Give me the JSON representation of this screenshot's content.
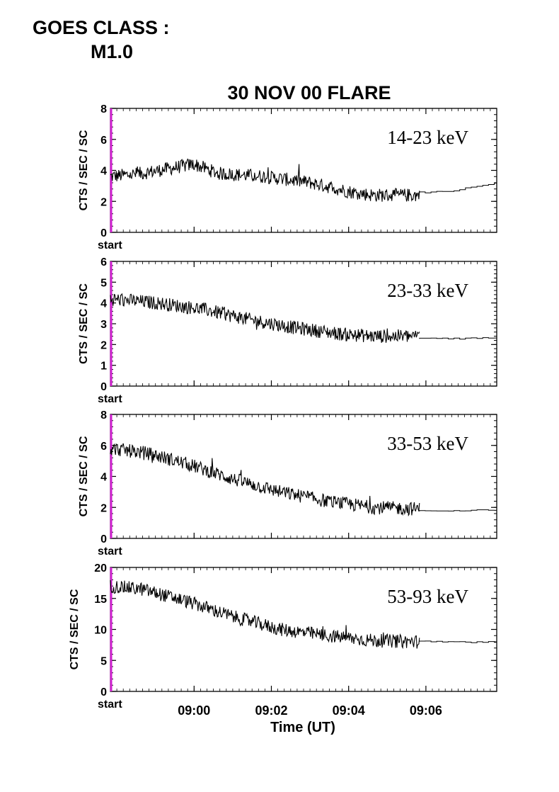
{
  "header": {
    "goes_line1": "GOES CLASS :",
    "goes_line2": "M1.0"
  },
  "chart_data": {
    "type": "line",
    "title": "30 NOV 00 FLARE",
    "xlabel": "Time (UT)",
    "x_axis": {
      "range": [
        "08:57:50",
        "09:07:50"
      ],
      "start_label": "start",
      "tick_labels": [
        "09:00",
        "09:02",
        "09:04",
        "09:06"
      ],
      "tick_times": [
        "09:00",
        "09:02",
        "09:04",
        "09:06"
      ],
      "data_end": "09:05:50"
    },
    "panels": [
      {
        "band": "14-23 keV",
        "ylabel": "CTS / SEC / SC",
        "ylim": [
          0,
          8
        ],
        "yticks": [
          0,
          2,
          4,
          6,
          8
        ],
        "series": [
          {
            "style": "noisy",
            "x": [
              0,
              0.1,
              0.27,
              0.35,
              0.5,
              0.65,
              0.78,
              0.85,
              1.0
            ],
            "y": [
              3.6,
              3.8,
              4.4,
              3.8,
              3.6,
              3.2,
              2.6,
              2.4,
              2.4
            ]
          },
          {
            "style": "step",
            "x": [
              1.0,
              1.1,
              1.3,
              1.45,
              1.67
            ],
            "y": [
              2.6,
              2.6,
              3.3,
              3.0,
              2.8
            ]
          }
        ]
      },
      {
        "band": "23-33 keV",
        "ylabel": "CTS / SEC / SC",
        "ylim": [
          0,
          6
        ],
        "yticks": [
          0,
          1,
          2,
          3,
          4,
          5,
          6
        ],
        "series": [
          {
            "style": "noisy",
            "x": [
              0,
              0.15,
              0.3,
              0.45,
              0.6,
              0.75,
              0.85,
              1.0
            ],
            "y": [
              4.2,
              4.0,
              3.7,
              3.2,
              2.8,
              2.5,
              2.4,
              2.4
            ]
          },
          {
            "style": "step",
            "x": [
              1.0,
              1.2,
              1.4,
              1.55,
              1.67
            ],
            "y": [
              2.3,
              2.3,
              2.4,
              2.4,
              2.2
            ]
          }
        ]
      },
      {
        "band": "33-53 keV",
        "ylabel": "CTS / SEC / SC",
        "ylim": [
          0,
          8
        ],
        "yticks": [
          0,
          2,
          4,
          6,
          8
        ],
        "series": [
          {
            "style": "noisy",
            "x": [
              0,
              0.12,
              0.25,
              0.4,
              0.55,
              0.7,
              0.85,
              1.0
            ],
            "y": [
              5.8,
              5.5,
              4.8,
              3.8,
              3.0,
              2.4,
              2.0,
              1.9
            ]
          },
          {
            "style": "step",
            "x": [
              1.0,
              1.3,
              1.5,
              1.67
            ],
            "y": [
              1.8,
              1.8,
              1.8,
              1.9
            ]
          }
        ]
      },
      {
        "band": "53-93 keV",
        "ylabel": "CTS / SEC / SC",
        "ylim": [
          0,
          20
        ],
        "yticks": [
          0,
          5,
          10,
          15,
          20
        ],
        "series": [
          {
            "style": "noisy",
            "x": [
              0,
              0.1,
              0.25,
              0.4,
              0.55,
              0.7,
              0.85,
              1.0
            ],
            "y": [
              17,
              16.5,
              14.5,
              12,
              10,
              9,
              8.2,
              8
            ]
          },
          {
            "style": "step",
            "x": [
              1.0,
              1.3,
              1.5,
              1.67
            ],
            "y": [
              8,
              8,
              8,
              8
            ]
          }
        ]
      }
    ]
  },
  "colors": {
    "axis": "#000000",
    "trace": "#000000",
    "start_marker": "#d01fd0"
  }
}
